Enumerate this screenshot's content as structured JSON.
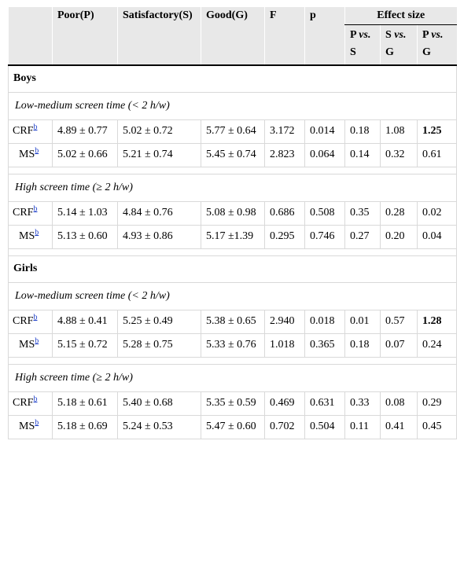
{
  "header": {
    "poor": "Poor(P)",
    "satisfactory": "Satisfactory(S)",
    "good": "Good(G)",
    "f": "F",
    "p": "p",
    "effect_size": "Effect size",
    "p_vs_s_a": "P",
    "p_vs_s_vs": "vs.",
    "p_vs_s_b": "S",
    "s_vs_g_a": "S",
    "s_vs_g_vs": "vs.",
    "s_vs_g_b": "G",
    "p_vs_g_a": "P",
    "p_vs_g_vs": "vs.",
    "p_vs_g_b": "G"
  },
  "footnote_marker": "b",
  "boys": {
    "label": "Boys",
    "low": {
      "label": "Low-medium screen time (< 2 h/w)",
      "crf": {
        "name": "CRF",
        "poor": "4.89 ± 0.77",
        "sat": "5.02 ± 0.72",
        "good": "5.77 ± 0.64",
        "f": "3.172",
        "p": "0.014",
        "ps": "0.18",
        "sg": "1.08",
        "pg": "1.25"
      },
      "ms": {
        "name": "MS",
        "poor": "5.02 ± 0.66",
        "sat": "5.21 ± 0.74",
        "good": "5.45 ± 0.74",
        "f": "2.823",
        "p": "0.064",
        "ps": "0.14",
        "sg": "0.32",
        "pg": "0.61"
      }
    },
    "high": {
      "label": "High screen time (≥ 2 h/w)",
      "crf": {
        "name": "CRF",
        "poor": "5.14 ± 1.03",
        "sat": "4.84 ± 0.76",
        "good": "5.08 ± 0.98",
        "f": "0.686",
        "p": "0.508",
        "ps": "0.35",
        "sg": "0.28",
        "pg": "0.02"
      },
      "ms": {
        "name": "MS",
        "poor": "5.13 ± 0.60",
        "sat": "4.93 ± 0.86",
        "good": "5.17 ±1.39",
        "f": "0.295",
        "p": "0.746",
        "ps": "0.27",
        "sg": "0.20",
        "pg": "0.04"
      }
    }
  },
  "girls": {
    "label": "Girls",
    "low": {
      "label": "Low-medium screen time (< 2 h/w)",
      "crf": {
        "name": "CRF",
        "poor": "4.88 ± 0.41",
        "sat": "5.25 ± 0.49",
        "good": "5.38 ± 0.65",
        "f": "2.940",
        "p": "0.018",
        "ps": "0.01",
        "sg": "0.57",
        "pg": "1.28"
      },
      "ms": {
        "name": "MS",
        "poor": "5.15 ± 0.72",
        "sat": "5.28 ± 0.75",
        "good": "5.33 ± 0.76",
        "f": "1.018",
        "p": "0.365",
        "ps": "0.18",
        "sg": "0.07",
        "pg": "0.24"
      }
    },
    "high": {
      "label": "High screen time (≥ 2 h/w)",
      "crf": {
        "name": "CRF",
        "poor": "5.18 ± 0.61",
        "sat": "5.40 ± 0.68",
        "good": "5.35 ± 0.59",
        "f": "0.469",
        "p": "0.631",
        "ps": "0.33",
        "sg": "0.08",
        "pg": "0.29"
      },
      "ms": {
        "name": "MS",
        "poor": "5.18 ± 0.69",
        "sat": "5.24 ± 0.53",
        "good": "5.47 ± 0.60",
        "f": "0.702",
        "p": "0.504",
        "ps": "0.11",
        "sg": "0.41",
        "pg": "0.45"
      }
    }
  }
}
